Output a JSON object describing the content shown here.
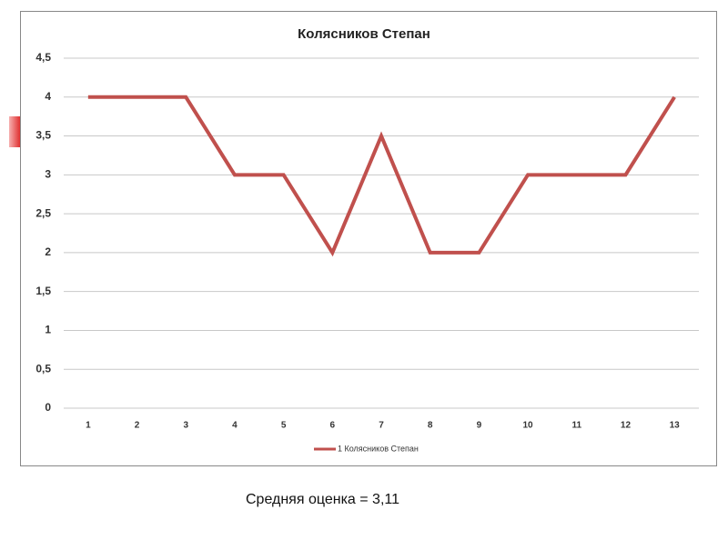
{
  "chart_data": {
    "type": "line",
    "title": "Колясников Степан",
    "categories": [
      "1",
      "2",
      "3",
      "4",
      "5",
      "6",
      "7",
      "8",
      "9",
      "10",
      "11",
      "12",
      "13"
    ],
    "series": [
      {
        "name": "1 Колясников Степан",
        "color": "#c0504d",
        "values": [
          4,
          4,
          4,
          3,
          3,
          2,
          3.5,
          2,
          2,
          3,
          3,
          3,
          4
        ]
      }
    ],
    "ylim": [
      0,
      4.5
    ],
    "yticks": [
      0,
      {
        "value": 0.5,
        "label": "0,5"
      },
      1,
      {
        "value": 1.5,
        "label": "1,5"
      },
      2,
      {
        "value": 2.5,
        "label": "2,5"
      },
      3,
      {
        "value": 3.5,
        "label": "3,5"
      },
      4,
      {
        "value": 4.5,
        "label": "4,5"
      }
    ],
    "grid": true,
    "legend": "bottom"
  },
  "caption": "Средняя оценка = 3,11"
}
